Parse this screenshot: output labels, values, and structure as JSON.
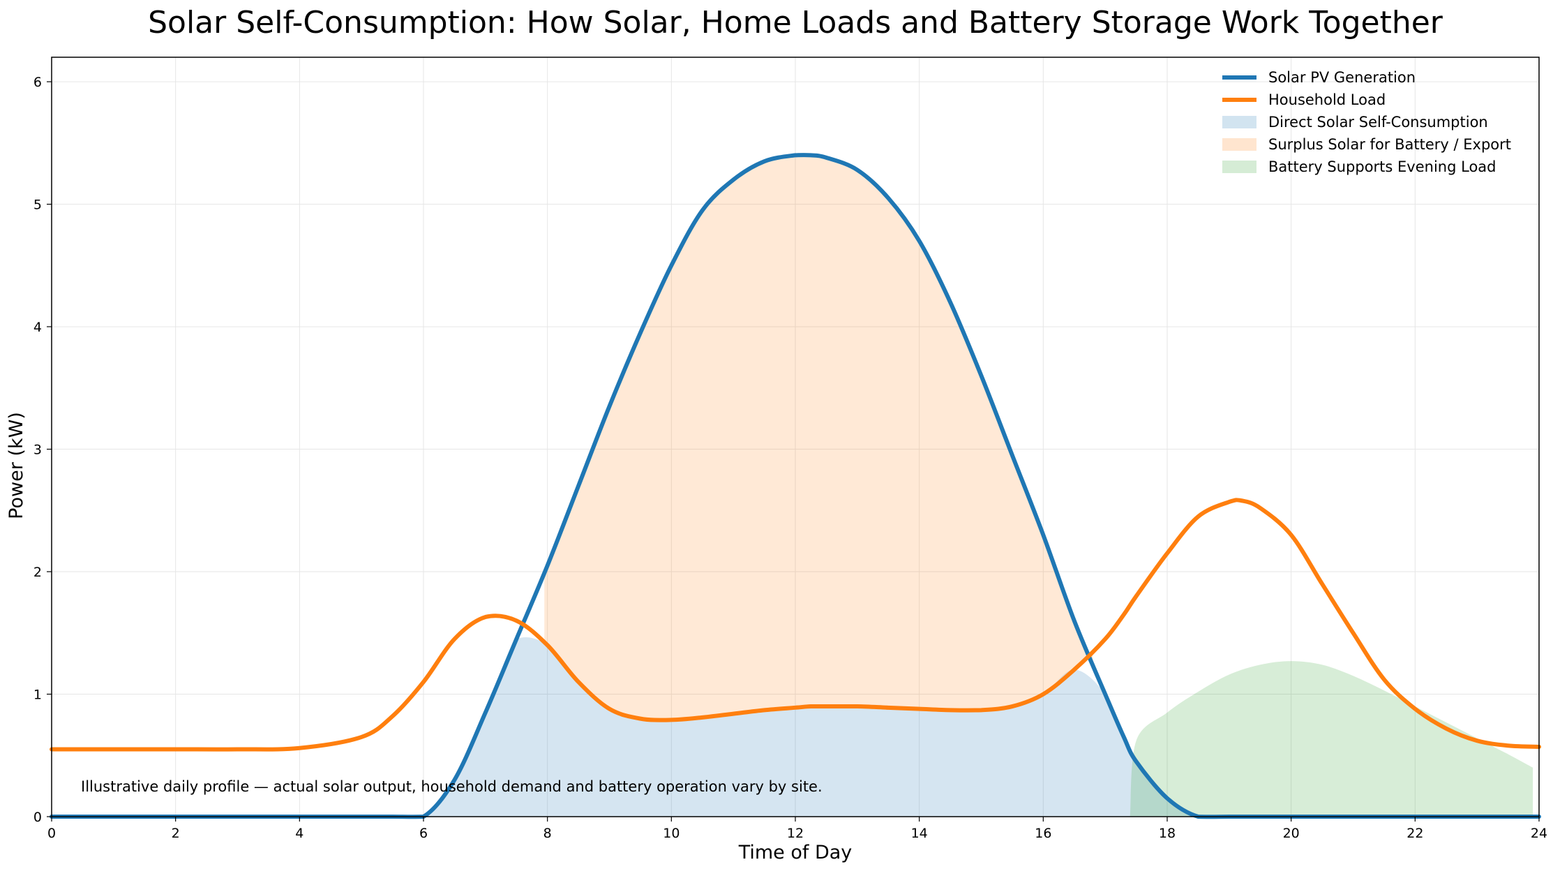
{
  "chart_data": {
    "type": "line",
    "title": "Solar Self-Consumption: How Solar, Home Loads and Battery Storage Work Together",
    "xlabel": "Time of Day",
    "ylabel": "Power (kW)",
    "xlim": [
      0,
      24
    ],
    "ylim": [
      0,
      6.2
    ],
    "x_ticks": [
      "0",
      "2",
      "4",
      "6",
      "8",
      "10",
      "12",
      "14",
      "16",
      "18",
      "20",
      "22",
      "24"
    ],
    "y_ticks": [
      "0",
      "1",
      "2",
      "3",
      "4",
      "5",
      "6"
    ],
    "grid": true,
    "legend_position": "top-right",
    "annotation": "Illustrative daily profile — actual solar output, household demand and battery operation vary by site.",
    "x": [
      0,
      1,
      2,
      3,
      4,
      5,
      5.5,
      6,
      6.5,
      7,
      7.5,
      8,
      8.5,
      9,
      9.5,
      10,
      10.5,
      11,
      11.5,
      12,
      12.25,
      12.5,
      13,
      13.5,
      14,
      14.5,
      15,
      15.5,
      16,
      16.5,
      17,
      17.3,
      17.5,
      18,
      18.5,
      19,
      19.2,
      19.5,
      20,
      20.5,
      21,
      21.5,
      22,
      22.5,
      23,
      23.5,
      24
    ],
    "series": [
      {
        "name": "Solar PV Generation",
        "kind": "line",
        "color": "#1f77b4",
        "values": [
          0,
          0,
          0,
          0,
          0,
          0,
          0,
          0.0,
          0.3,
          0.85,
          1.45,
          2.05,
          2.7,
          3.35,
          3.95,
          4.5,
          4.95,
          5.2,
          5.35,
          5.4,
          5.4,
          5.38,
          5.28,
          5.05,
          4.7,
          4.2,
          3.6,
          2.95,
          2.3,
          1.6,
          1.0,
          0.65,
          0.45,
          0.15,
          0.0,
          0,
          0,
          0,
          0,
          0,
          0,
          0,
          0,
          0,
          0,
          0,
          0
        ]
      },
      {
        "name": "Household Load",
        "kind": "line",
        "color": "#ff7f0e",
        "values": [
          0.55,
          0.55,
          0.55,
          0.55,
          0.56,
          0.65,
          0.82,
          1.1,
          1.45,
          1.63,
          1.6,
          1.4,
          1.1,
          0.88,
          0.8,
          0.79,
          0.81,
          0.84,
          0.87,
          0.89,
          0.9,
          0.9,
          0.9,
          0.89,
          0.88,
          0.87,
          0.87,
          0.9,
          1.0,
          1.2,
          1.45,
          1.65,
          1.8,
          2.15,
          2.45,
          2.57,
          2.58,
          2.52,
          2.3,
          1.9,
          1.5,
          1.12,
          0.88,
          0.72,
          0.62,
          0.58,
          0.57
        ]
      },
      {
        "name": "Direct Solar Self-Consumption",
        "kind": "area",
        "color": "#1f77b4",
        "values": [
          0,
          0,
          0,
          0,
          0,
          0,
          0,
          0.0,
          0.3,
          0.85,
          1.45,
          1.4,
          1.1,
          0.88,
          0.8,
          0.79,
          0.81,
          0.84,
          0.87,
          0.89,
          0.9,
          0.9,
          0.9,
          0.89,
          0.88,
          0.87,
          0.87,
          0.9,
          1.0,
          1.2,
          1.0,
          0.65,
          0.45,
          0.15,
          0.0,
          0,
          0,
          0,
          0,
          0,
          0,
          0,
          0,
          0,
          0,
          0,
          0
        ]
      },
      {
        "name": "Surplus Solar for Battery / Export",
        "kind": "band",
        "color": "#ff7f0e",
        "lower": "Household Load",
        "upper": "Solar PV Generation",
        "x_range": [
          7.95,
          16.8
        ]
      },
      {
        "name": "Battery Supports Evening Load",
        "kind": "area",
        "color": "#2ca02c",
        "x": [
          17.4,
          17.5,
          18,
          18.5,
          19,
          19.5,
          20,
          20.5,
          21,
          21.5,
          22,
          22.5,
          23,
          23.5,
          23.9
        ],
        "values": [
          0.0,
          0.62,
          0.85,
          1.02,
          1.16,
          1.24,
          1.27,
          1.24,
          1.15,
          1.03,
          0.9,
          0.77,
          0.64,
          0.51,
          0.4
        ]
      }
    ]
  }
}
